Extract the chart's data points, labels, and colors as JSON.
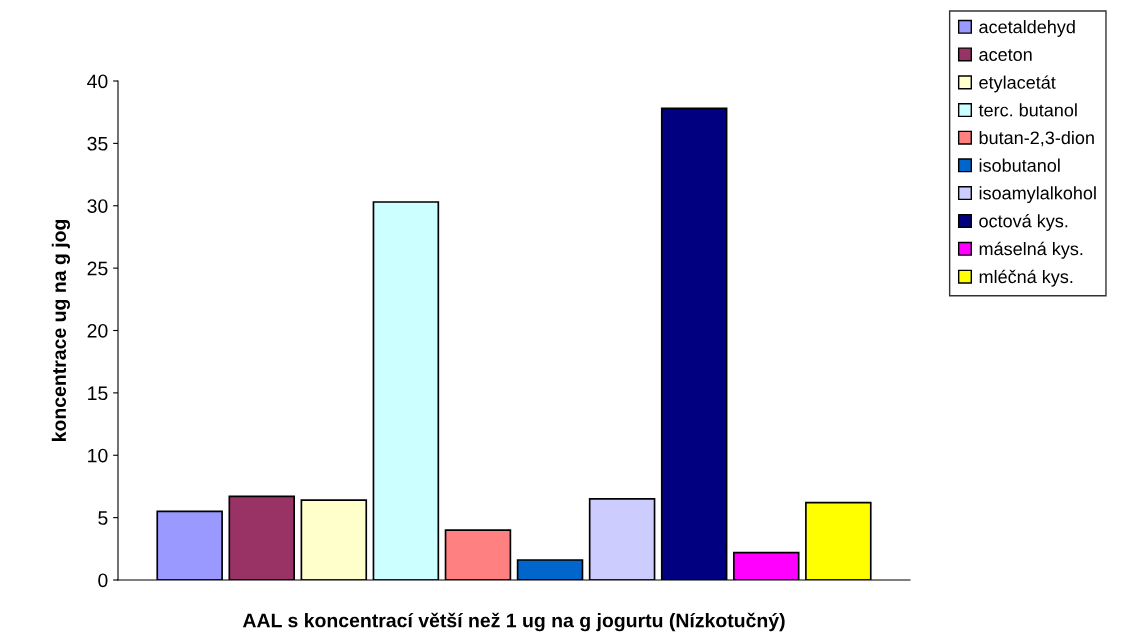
{
  "chart_data": {
    "type": "bar",
    "xlabel": "AAL s koncentrací větší než 1 ug na g jogurtu (Nízkotučný)",
    "ylabel": "koncentrace ug na g jog",
    "categories": [
      null
    ],
    "ylim": [
      0,
      40
    ],
    "yticks": [
      0,
      5,
      10,
      15,
      20,
      25,
      30,
      35,
      40
    ],
    "grid": false,
    "legend": "top right",
    "series": [
      {
        "name": "acetaldehyd",
        "color": "#9999ff",
        "values": [
          5.5
        ]
      },
      {
        "name": "aceton",
        "color": "#993366",
        "values": [
          6.7
        ]
      },
      {
        "name": "etylacetát",
        "color": "#ffffcc",
        "values": [
          6.4
        ]
      },
      {
        "name": "terc. butanol",
        "color": "#ccffff",
        "values": [
          30.3
        ]
      },
      {
        "name": "butan-2,3-dion",
        "color": "#ff8080",
        "values": [
          4.0
        ]
      },
      {
        "name": "isobutanol",
        "color": "#0066cc",
        "values": [
          1.6
        ]
      },
      {
        "name": "isoamylalkohol",
        "color": "#ccccff",
        "values": [
          6.5
        ]
      },
      {
        "name": "octová kys.",
        "color": "#000080",
        "values": [
          37.8
        ]
      },
      {
        "name": "máselná kys.",
        "color": "#ff00ff",
        "values": [
          2.2
        ]
      },
      {
        "name": "mléčná kys.",
        "color": "#ffff00",
        "values": [
          6.2
        ]
      }
    ]
  }
}
